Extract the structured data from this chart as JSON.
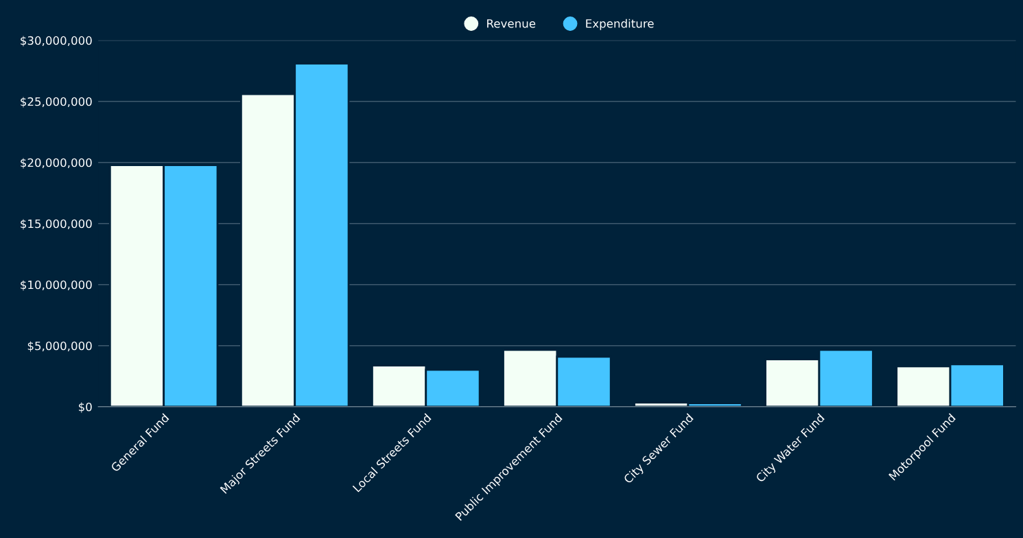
{
  "chart_data": {
    "type": "bar",
    "categories": [
      "General Fund",
      "Major Streets Fund",
      "Local Streets Fund",
      "Public Improvement Fund",
      "City Sewer Fund",
      "City Water Fund",
      "Motorpool Fund"
    ],
    "series": [
      {
        "name": "Revenue",
        "color": "#f3fff6",
        "values": [
          19780000,
          25600000,
          3370000,
          4660000,
          340000,
          3880000,
          3310000
        ]
      },
      {
        "name": "Expenditure",
        "color": "#45c4ff",
        "values": [
          19780000,
          28100000,
          3030000,
          4100000,
          280000,
          4660000,
          3480000
        ]
      }
    ],
    "ylim": [
      0,
      30000000
    ],
    "yticks": [
      {
        "value": 0,
        "label": "$0"
      },
      {
        "value": 5000000,
        "label": "$5,000,000"
      },
      {
        "value": 10000000,
        "label": "$10,000,000"
      },
      {
        "value": 15000000,
        "label": "$15,000,000"
      },
      {
        "value": 20000000,
        "label": "$20,000,000"
      },
      {
        "value": 25000000,
        "label": "$25,000,000"
      },
      {
        "value": 30000000,
        "label": "$30,000,000"
      }
    ],
    "grid": "y",
    "legend": "top"
  }
}
